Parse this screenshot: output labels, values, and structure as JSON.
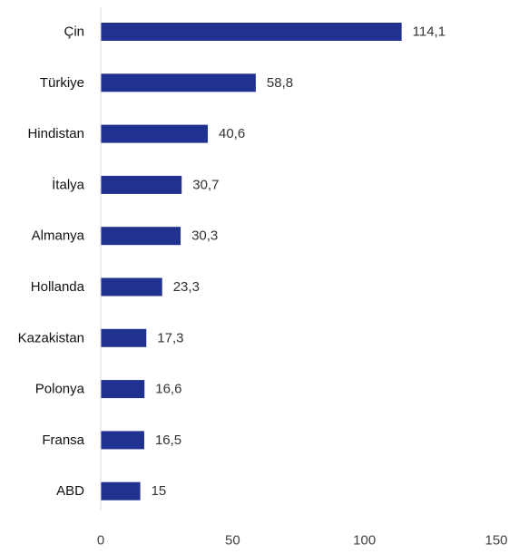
{
  "chart_data": {
    "type": "bar",
    "orientation": "horizontal",
    "title": "",
    "xlabel": "",
    "ylabel": "",
    "categories": [
      "Çin",
      "Türkiye",
      "Hindistan",
      "İtalya",
      "Almanya",
      "Hollanda",
      "Kazakistan",
      "Polonya",
      "Fransa",
      "ABD"
    ],
    "values": [
      114.1,
      58.8,
      40.6,
      30.7,
      30.3,
      23.3,
      17.3,
      16.6,
      16.5,
      15
    ],
    "value_labels": [
      "114,1",
      "58,8",
      "40,6",
      "30,7",
      "30,3",
      "23,3",
      "17,3",
      "16,6",
      "16,5",
      "15"
    ],
    "xlim": [
      0,
      150
    ],
    "xticks": [
      0,
      50,
      100,
      150
    ],
    "xtick_labels": [
      "0",
      "50",
      "100",
      "150"
    ],
    "grid": false,
    "legend": "none",
    "bar_color": "#21318F",
    "axis_color": "#d9d9d9"
  }
}
